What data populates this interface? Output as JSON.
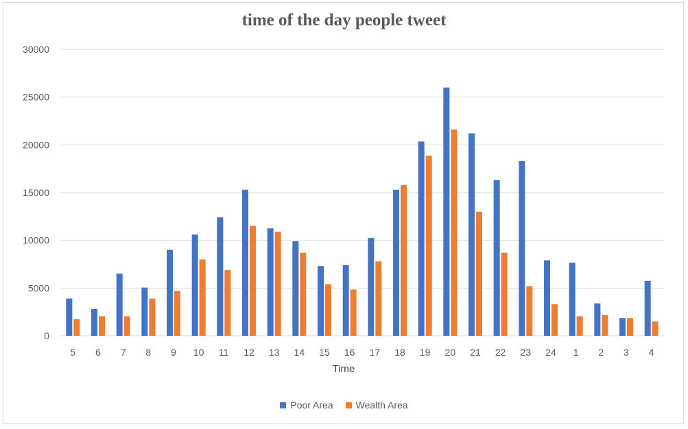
{
  "chart_data": {
    "type": "bar",
    "title": "time of the day people tweet",
    "xlabel": "Time",
    "ylabel": "",
    "ylim": [
      0,
      30000
    ],
    "yticks": [
      "0",
      "5000",
      "10000",
      "15000",
      "20000",
      "25000",
      "30000"
    ],
    "grid": true,
    "legend_position": "bottom",
    "categories": [
      "5",
      "6",
      "7",
      "8",
      "9",
      "10",
      "11",
      "12",
      "13",
      "14",
      "15",
      "16",
      "17",
      "18",
      "19",
      "20",
      "21",
      "22",
      "23",
      "24",
      "1",
      "2",
      "3",
      "4"
    ],
    "series": [
      {
        "name": "Poor Area",
        "color": "#4472c4",
        "values": [
          3900,
          2800,
          6500,
          5050,
          9000,
          10600,
          12400,
          15300,
          11250,
          9900,
          7300,
          7400,
          10250,
          15300,
          20350,
          26000,
          21200,
          16300,
          18300,
          7900,
          7650,
          3400,
          1850,
          5750
        ]
      },
      {
        "name": "Wealth Area",
        "color": "#ed7d31",
        "values": [
          1750,
          2050,
          2050,
          3900,
          4700,
          8000,
          6900,
          11500,
          10900,
          8700,
          5400,
          4850,
          7800,
          15800,
          18850,
          21600,
          13000,
          8700,
          5200,
          3300,
          2050,
          2150,
          1850,
          1500
        ]
      }
    ]
  }
}
